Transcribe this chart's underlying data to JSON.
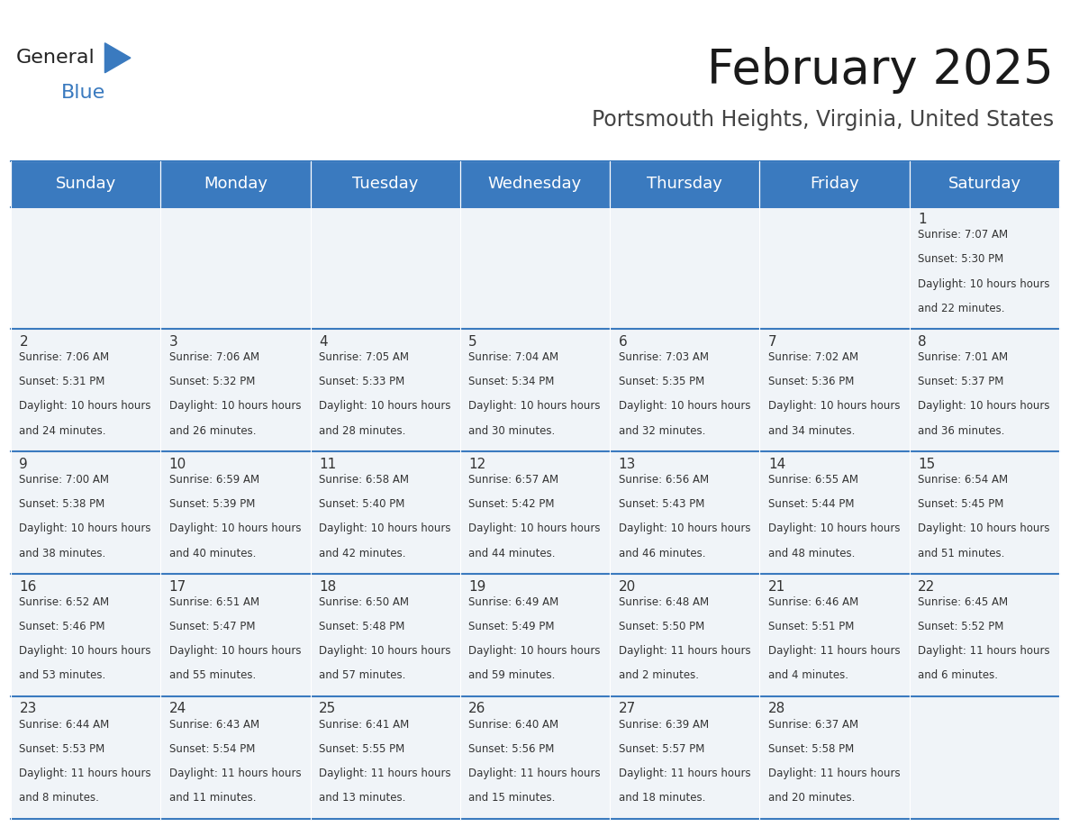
{
  "title": "February 2025",
  "subtitle": "Portsmouth Heights, Virginia, United States",
  "header_color": "#3a7abf",
  "header_text_color": "#ffffff",
  "cell_bg_color": "#f0f4f8",
  "border_color": "#3a7abf",
  "text_color": "#333333",
  "days_of_week": [
    "Sunday",
    "Monday",
    "Tuesday",
    "Wednesday",
    "Thursday",
    "Friday",
    "Saturday"
  ],
  "calendar_data": [
    [
      null,
      null,
      null,
      null,
      null,
      null,
      {
        "day": 1,
        "sunrise": "7:07 AM",
        "sunset": "5:30 PM",
        "daylight": "10 hours and 22 minutes."
      }
    ],
    [
      {
        "day": 2,
        "sunrise": "7:06 AM",
        "sunset": "5:31 PM",
        "daylight": "10 hours and 24 minutes."
      },
      {
        "day": 3,
        "sunrise": "7:06 AM",
        "sunset": "5:32 PM",
        "daylight": "10 hours and 26 minutes."
      },
      {
        "day": 4,
        "sunrise": "7:05 AM",
        "sunset": "5:33 PM",
        "daylight": "10 hours and 28 minutes."
      },
      {
        "day": 5,
        "sunrise": "7:04 AM",
        "sunset": "5:34 PM",
        "daylight": "10 hours and 30 minutes."
      },
      {
        "day": 6,
        "sunrise": "7:03 AM",
        "sunset": "5:35 PM",
        "daylight": "10 hours and 32 minutes."
      },
      {
        "day": 7,
        "sunrise": "7:02 AM",
        "sunset": "5:36 PM",
        "daylight": "10 hours and 34 minutes."
      },
      {
        "day": 8,
        "sunrise": "7:01 AM",
        "sunset": "5:37 PM",
        "daylight": "10 hours and 36 minutes."
      }
    ],
    [
      {
        "day": 9,
        "sunrise": "7:00 AM",
        "sunset": "5:38 PM",
        "daylight": "10 hours and 38 minutes."
      },
      {
        "day": 10,
        "sunrise": "6:59 AM",
        "sunset": "5:39 PM",
        "daylight": "10 hours and 40 minutes."
      },
      {
        "day": 11,
        "sunrise": "6:58 AM",
        "sunset": "5:40 PM",
        "daylight": "10 hours and 42 minutes."
      },
      {
        "day": 12,
        "sunrise": "6:57 AM",
        "sunset": "5:42 PM",
        "daylight": "10 hours and 44 minutes."
      },
      {
        "day": 13,
        "sunrise": "6:56 AM",
        "sunset": "5:43 PM",
        "daylight": "10 hours and 46 minutes."
      },
      {
        "day": 14,
        "sunrise": "6:55 AM",
        "sunset": "5:44 PM",
        "daylight": "10 hours and 48 minutes."
      },
      {
        "day": 15,
        "sunrise": "6:54 AM",
        "sunset": "5:45 PM",
        "daylight": "10 hours and 51 minutes."
      }
    ],
    [
      {
        "day": 16,
        "sunrise": "6:52 AM",
        "sunset": "5:46 PM",
        "daylight": "10 hours and 53 minutes."
      },
      {
        "day": 17,
        "sunrise": "6:51 AM",
        "sunset": "5:47 PM",
        "daylight": "10 hours and 55 minutes."
      },
      {
        "day": 18,
        "sunrise": "6:50 AM",
        "sunset": "5:48 PM",
        "daylight": "10 hours and 57 minutes."
      },
      {
        "day": 19,
        "sunrise": "6:49 AM",
        "sunset": "5:49 PM",
        "daylight": "10 hours and 59 minutes."
      },
      {
        "day": 20,
        "sunrise": "6:48 AM",
        "sunset": "5:50 PM",
        "daylight": "11 hours and 2 minutes."
      },
      {
        "day": 21,
        "sunrise": "6:46 AM",
        "sunset": "5:51 PM",
        "daylight": "11 hours and 4 minutes."
      },
      {
        "day": 22,
        "sunrise": "6:45 AM",
        "sunset": "5:52 PM",
        "daylight": "11 hours and 6 minutes."
      }
    ],
    [
      {
        "day": 23,
        "sunrise": "6:44 AM",
        "sunset": "5:53 PM",
        "daylight": "11 hours and 8 minutes."
      },
      {
        "day": 24,
        "sunrise": "6:43 AM",
        "sunset": "5:54 PM",
        "daylight": "11 hours and 11 minutes."
      },
      {
        "day": 25,
        "sunrise": "6:41 AM",
        "sunset": "5:55 PM",
        "daylight": "11 hours and 13 minutes."
      },
      {
        "day": 26,
        "sunrise": "6:40 AM",
        "sunset": "5:56 PM",
        "daylight": "11 hours and 15 minutes."
      },
      {
        "day": 27,
        "sunrise": "6:39 AM",
        "sunset": "5:57 PM",
        "daylight": "11 hours and 18 minutes."
      },
      {
        "day": 28,
        "sunrise": "6:37 AM",
        "sunset": "5:58 PM",
        "daylight": "11 hours and 20 minutes."
      },
      null
    ]
  ]
}
